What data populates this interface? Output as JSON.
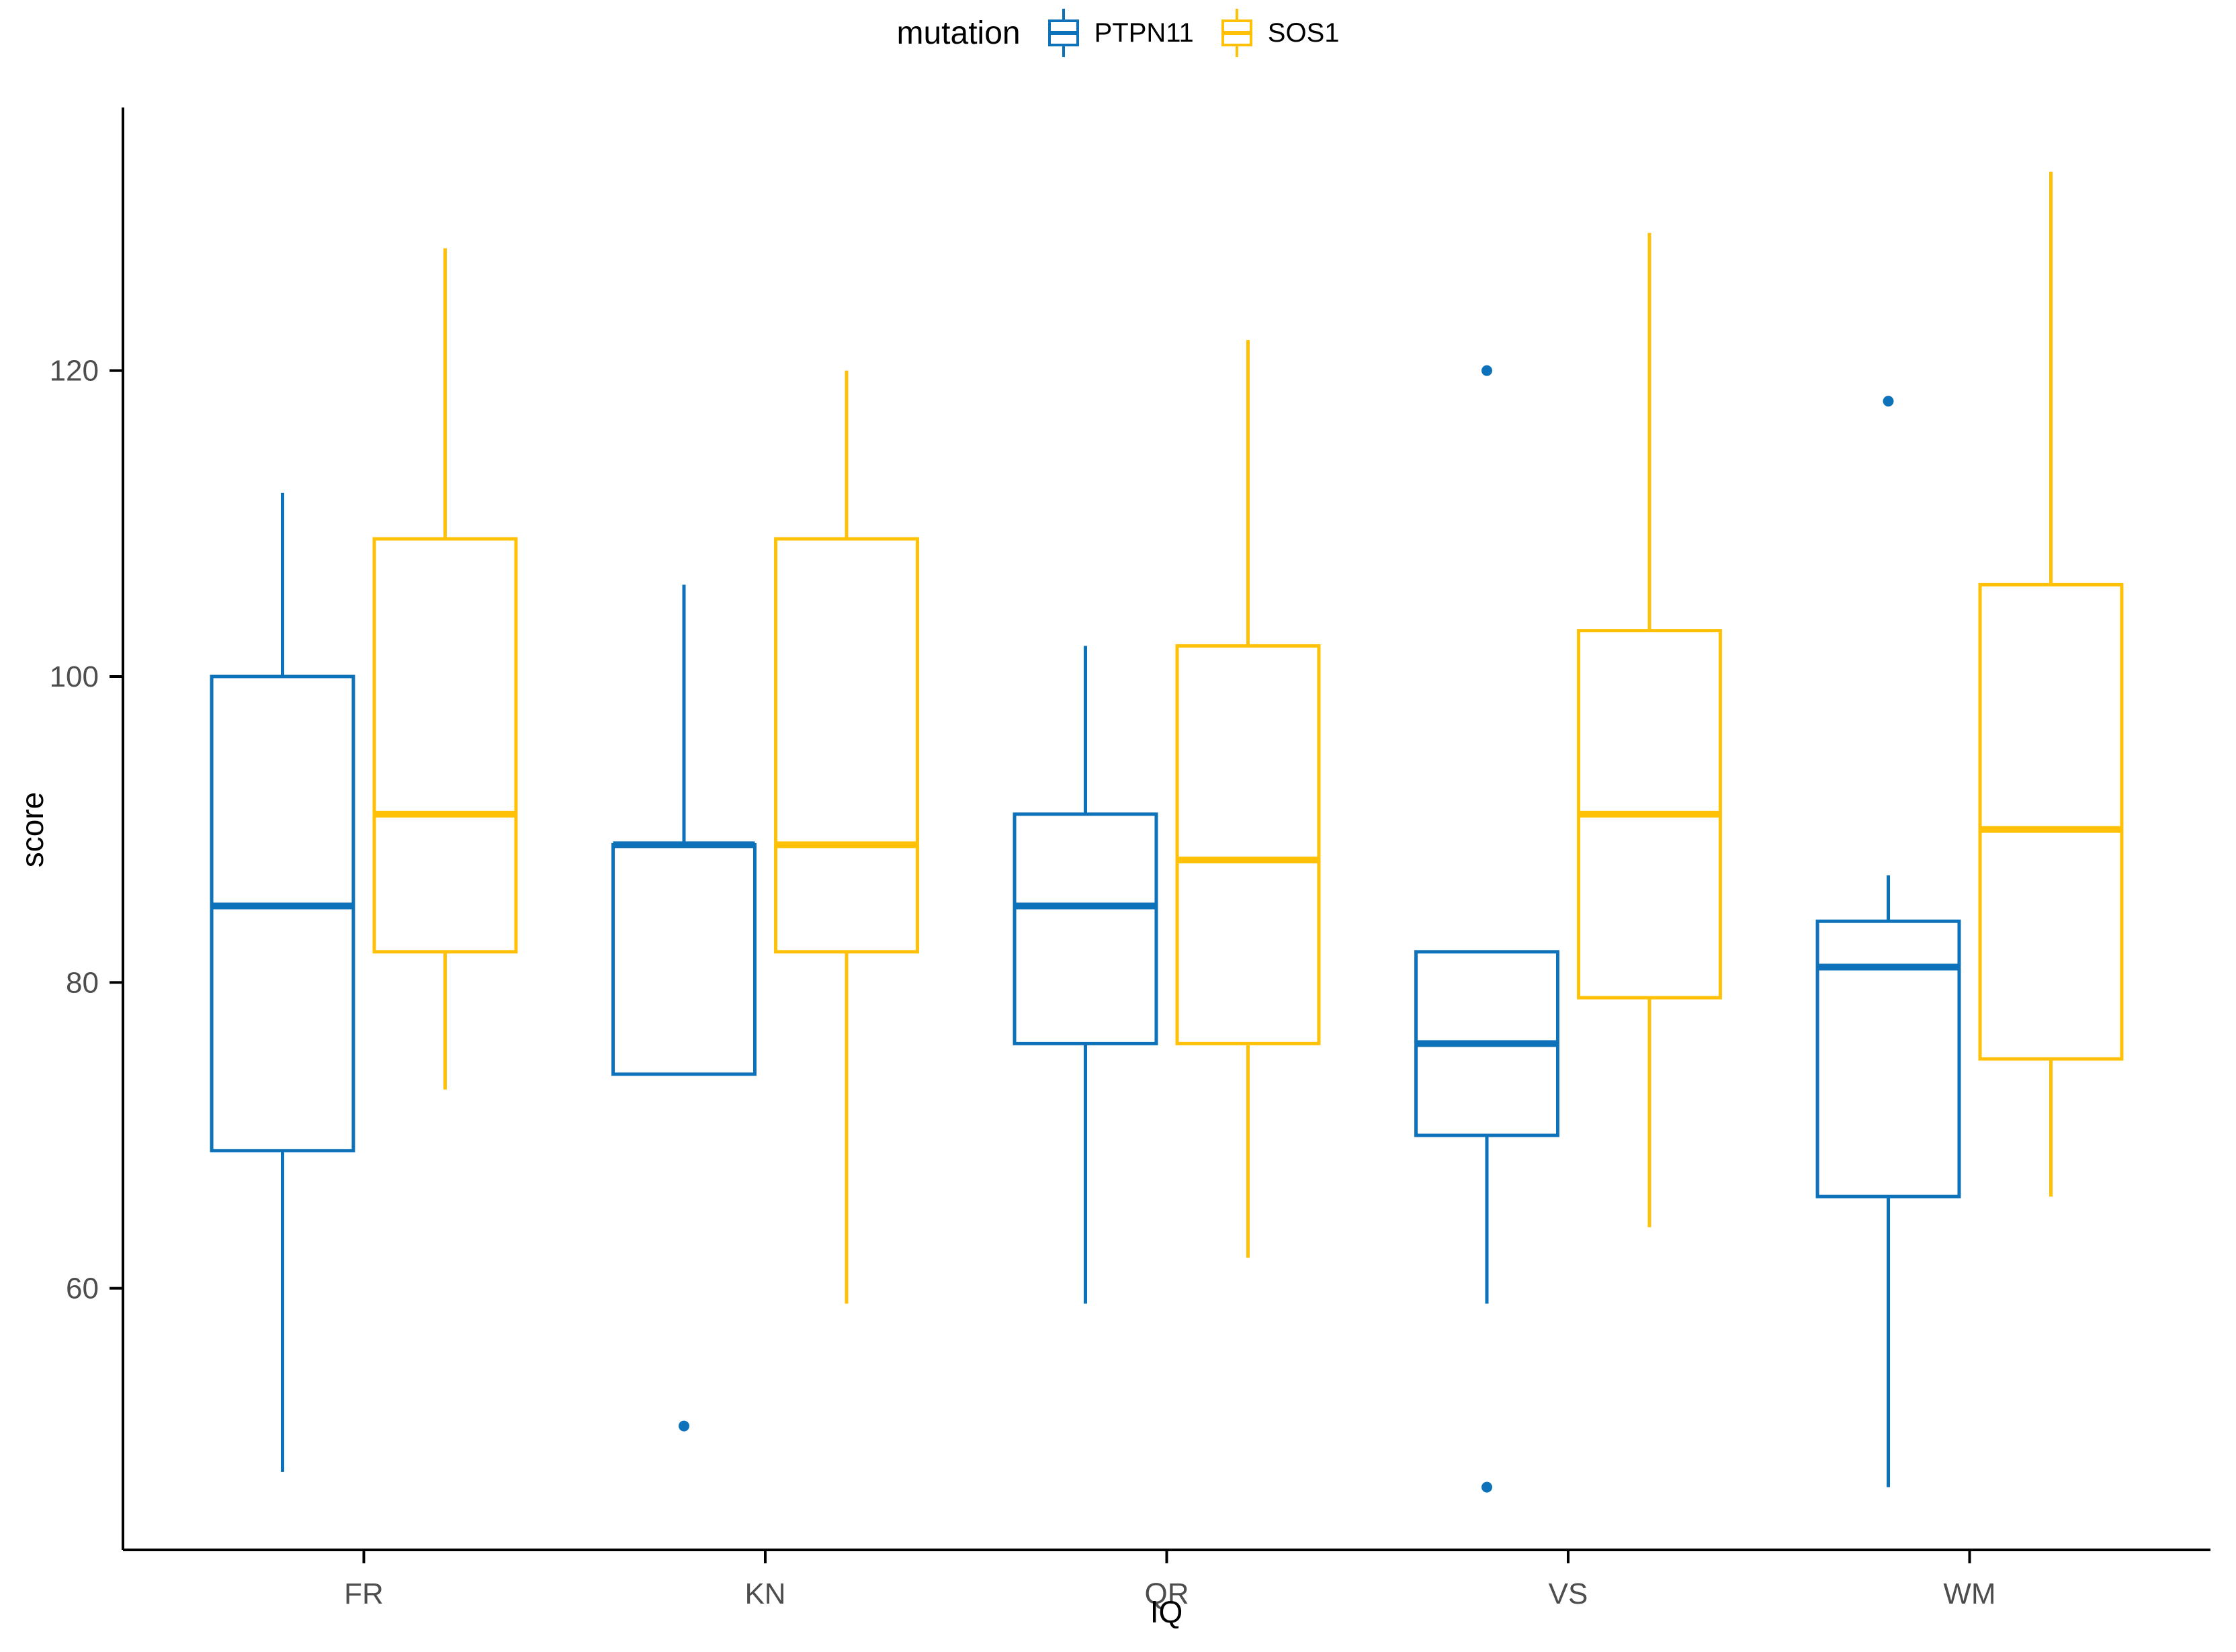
{
  "chart_data": {
    "type": "boxplot",
    "title": "",
    "xlabel": "IQ",
    "ylabel": "score",
    "grid": false,
    "legend": {
      "title": "mutation",
      "position": "top",
      "entries": [
        {
          "label": "PTPN11",
          "color": "#0D72B9"
        },
        {
          "label": "SOS1",
          "color": "#FFC107"
        }
      ]
    },
    "categories": [
      "FR",
      "KN",
      "QR",
      "VS",
      "WM"
    ],
    "y_ticks": [
      60,
      80,
      100,
      120
    ],
    "ylim": [
      42.9,
      137.2
    ],
    "series": [
      {
        "name": "PTPN11",
        "color": "#0D72B9",
        "boxes": [
          {
            "category": "FR",
            "whisker_low": 48,
            "q1": 69,
            "median": 85,
            "q3": 100,
            "whisker_high": 112,
            "outliers": []
          },
          {
            "category": "KN",
            "whisker_low": 74,
            "q1": 74,
            "median": 89,
            "q3": 89,
            "whisker_high": 106,
            "outliers": [
              51
            ]
          },
          {
            "category": "QR",
            "whisker_low": 59,
            "q1": 76,
            "median": 85,
            "q3": 91,
            "whisker_high": 102,
            "outliers": []
          },
          {
            "category": "VS",
            "whisker_low": 59,
            "q1": 70,
            "median": 76,
            "q3": 82,
            "whisker_high": 82,
            "outliers": [
              120,
              47
            ]
          },
          {
            "category": "WM",
            "whisker_low": 47,
            "q1": 66,
            "median": 81,
            "q3": 84,
            "whisker_high": 87,
            "outliers": [
              118
            ]
          }
        ]
      },
      {
        "name": "SOS1",
        "color": "#FFC107",
        "boxes": [
          {
            "category": "FR",
            "whisker_low": 73,
            "q1": 82,
            "median": 91,
            "q3": 109,
            "whisker_high": 128,
            "outliers": []
          },
          {
            "category": "KN",
            "whisker_low": 59,
            "q1": 82,
            "median": 89,
            "q3": 109,
            "whisker_high": 120,
            "outliers": []
          },
          {
            "category": "QR",
            "whisker_low": 62,
            "q1": 76,
            "median": 88,
            "q3": 102,
            "whisker_high": 122,
            "outliers": []
          },
          {
            "category": "VS",
            "whisker_low": 64,
            "q1": 79,
            "median": 91,
            "q3": 103,
            "whisker_high": 129,
            "outliers": []
          },
          {
            "category": "WM",
            "whisker_low": 66,
            "q1": 75,
            "median": 90,
            "q3": 106,
            "whisker_high": 133,
            "outliers": []
          }
        ]
      }
    ],
    "colors": {
      "background": "#ffffff",
      "axis_line": "#000000",
      "tick_text": "#4d4d4d",
      "box_fill": "#ffffff"
    }
  }
}
